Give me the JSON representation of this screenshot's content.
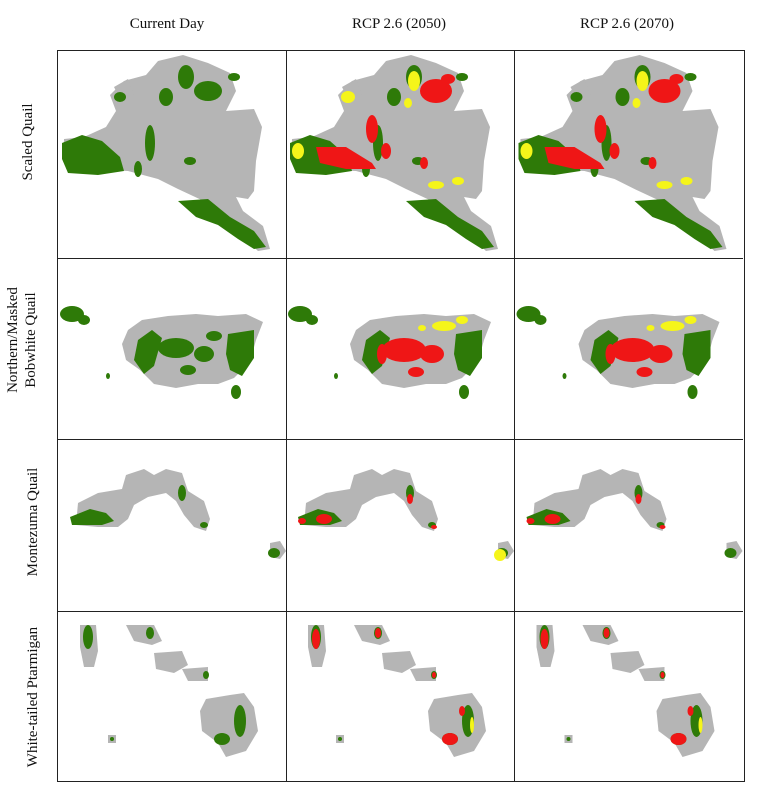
{
  "figure": {
    "columns": [
      {
        "label": "Current Day"
      },
      {
        "label": "RCP  2.6  (2050)"
      },
      {
        "label": "RCP 2.6 (2070)"
      }
    ],
    "rows": [
      {
        "label_lines": [
          "Scaled Quail"
        ],
        "key": "scaled"
      },
      {
        "label_lines": [
          "Northern/Masked",
          "Bobwhite Quail"
        ],
        "key": "bobwhite"
      },
      {
        "label_lines": [
          "Montezuma Quail"
        ],
        "key": "montezuma"
      },
      {
        "label_lines": [
          "White-tailed Ptarmigan"
        ],
        "key": "ptarmigan"
      }
    ],
    "colors": {
      "range_background": "#b5b5b5",
      "suitable": "#2e7a08",
      "lost": "#ef1616",
      "gained": "#f5f51a"
    }
  }
}
